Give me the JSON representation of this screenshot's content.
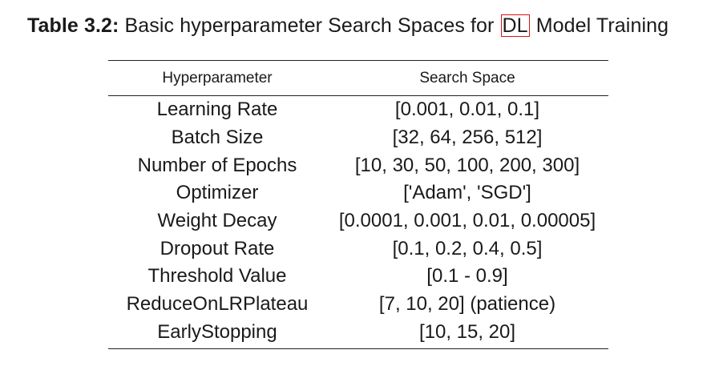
{
  "caption": {
    "label": "Table 3.2:",
    "text_before": "Basic hyperparameter Search Spaces for",
    "acronym": "DL",
    "text_after": "Model Training"
  },
  "table": {
    "headers": [
      "Hyperparameter",
      "Search Space"
    ],
    "rows": [
      {
        "param": "Learning Rate",
        "space": "[0.001, 0.01, 0.1]"
      },
      {
        "param": "Batch Size",
        "space": "[32, 64, 256, 512]"
      },
      {
        "param": "Number of Epochs",
        "space": "[10, 30, 50, 100, 200, 300]"
      },
      {
        "param": "Optimizer",
        "space": "['Adam', 'SGD']"
      },
      {
        "param": "Weight Decay",
        "space": "[0.0001, 0.001, 0.01, 0.00005]"
      },
      {
        "param": "Dropout Rate",
        "space": "[0.1, 0.2, 0.4, 0.5]"
      },
      {
        "param": "Threshold Value",
        "space": "[0.1 - 0.9]"
      },
      {
        "param": "ReduceOnLRPlateau",
        "space": "[7, 10, 20] (patience)"
      },
      {
        "param": "EarlyStopping",
        "space": "[10, 15, 20]"
      }
    ]
  },
  "colors": {
    "acronym_link_border": "#e0101a"
  }
}
